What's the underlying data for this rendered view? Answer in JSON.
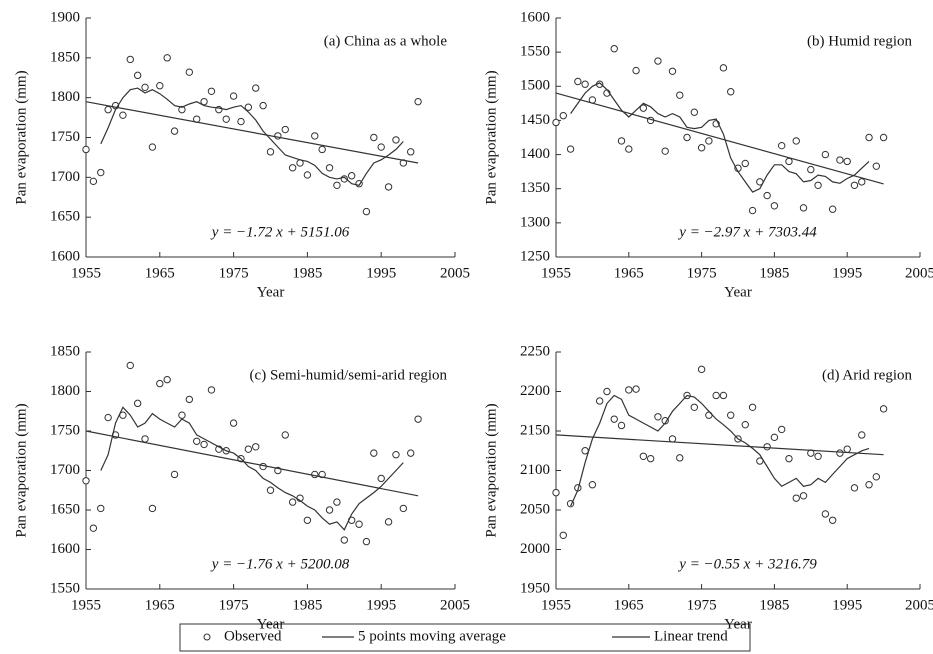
{
  "chart_data": [
    {
      "type": "line",
      "title": "(a) China as a whole",
      "annotation": "y = −1.72 x + 5151.06",
      "xlabel": "Year",
      "ylabel": "Pan evaporation (mm)",
      "xlim": [
        1955,
        2005
      ],
      "xticks": [
        1955,
        1965,
        1975,
        1985,
        1995,
        2005
      ],
      "ylim": [
        1600,
        1900
      ],
      "yticks": [
        1600,
        1650,
        1700,
        1750,
        1800,
        1850,
        1900
      ],
      "series": [
        {
          "name": "Observed",
          "type": "scatter",
          "color": "#333333",
          "x": [
            1955,
            1956,
            1957,
            1958,
            1959,
            1960,
            1961,
            1962,
            1963,
            1964,
            1965,
            1966,
            1967,
            1968,
            1969,
            1970,
            1971,
            1972,
            1973,
            1974,
            1975,
            1976,
            1977,
            1978,
            1979,
            1980,
            1981,
            1982,
            1983,
            1984,
            1985,
            1986,
            1987,
            1988,
            1989,
            1990,
            1991,
            1992,
            1993,
            1994,
            1995,
            1996,
            1997,
            1998,
            1999,
            2000
          ],
          "values": [
            1735,
            1695,
            1706,
            1785,
            1790,
            1778,
            1848,
            1828,
            1813,
            1738,
            1815,
            1850,
            1758,
            1785,
            1832,
            1773,
            1795,
            1808,
            1785,
            1773,
            1802,
            1770,
            1788,
            1812,
            1790,
            1732,
            1752,
            1760,
            1712,
            1718,
            1703,
            1752,
            1735,
            1712,
            1690,
            1698,
            1702,
            1692,
            1657,
            1750,
            1738,
            1688,
            1747,
            1718,
            1732,
            1795
          ]
        },
        {
          "name": "5 points moving average",
          "type": "line",
          "color": "#333333",
          "x": [
            1957,
            1958,
            1959,
            1960,
            1961,
            1962,
            1963,
            1964,
            1965,
            1966,
            1967,
            1968,
            1969,
            1970,
            1971,
            1972,
            1973,
            1974,
            1975,
            1976,
            1977,
            1978,
            1979,
            1980,
            1981,
            1982,
            1983,
            1984,
            1985,
            1986,
            1987,
            1988,
            1989,
            1990,
            1991,
            1992,
            1993,
            1994,
            1995,
            1996,
            1997,
            1998
          ],
          "values": [
            1742,
            1762,
            1785,
            1800,
            1810,
            1812,
            1806,
            1810,
            1805,
            1798,
            1790,
            1788,
            1792,
            1795,
            1790,
            1788,
            1787,
            1785,
            1788,
            1790,
            1782,
            1772,
            1758,
            1748,
            1738,
            1728,
            1725,
            1722,
            1720,
            1715,
            1705,
            1700,
            1698,
            1700,
            1692,
            1690,
            1705,
            1718,
            1722,
            1728,
            1735,
            1745
          ]
        },
        {
          "name": "Linear trend",
          "type": "line",
          "color": "#333333",
          "x": [
            1955,
            2000
          ],
          "values": [
            1795,
            1718
          ]
        }
      ]
    },
    {
      "type": "line",
      "title": "(b) Humid region",
      "annotation": "y = −2.97 x + 7303.44",
      "xlabel": "Year",
      "ylabel": "Pan evaporation (mm)",
      "xlim": [
        1955,
        2005
      ],
      "xticks": [
        1955,
        1965,
        1975,
        1985,
        1995,
        2005
      ],
      "ylim": [
        1250,
        1600
      ],
      "yticks": [
        1250,
        1300,
        1350,
        1400,
        1450,
        1500,
        1550,
        1600
      ],
      "series": [
        {
          "type": "scatter",
          "color": "#333333",
          "x": [
            1955,
            1956,
            1957,
            1958,
            1959,
            1960,
            1961,
            1962,
            1963,
            1964,
            1965,
            1966,
            1967,
            1968,
            1969,
            1970,
            1971,
            1972,
            1973,
            1974,
            1975,
            1976,
            1977,
            1978,
            1979,
            1980,
            1981,
            1982,
            1983,
            1984,
            1985,
            1986,
            1987,
            1988,
            1989,
            1990,
            1991,
            1992,
            1993,
            1994,
            1995,
            1996,
            1997,
            1998,
            1999,
            2000
          ],
          "values": [
            1447,
            1457,
            1408,
            1507,
            1503,
            1480,
            1503,
            1490,
            1555,
            1420,
            1408,
            1523,
            1468,
            1450,
            1537,
            1405,
            1522,
            1487,
            1425,
            1462,
            1410,
            1420,
            1445,
            1527,
            1492,
            1380,
            1387,
            1318,
            1360,
            1340,
            1325,
            1413,
            1390,
            1420,
            1322,
            1378,
            1355,
            1400,
            1320,
            1392,
            1390,
            1355,
            1360,
            1425,
            1383,
            1425
          ]
        },
        {
          "type": "line",
          "color": "#333333",
          "x": [
            1957,
            1958,
            1959,
            1960,
            1961,
            1962,
            1963,
            1964,
            1965,
            1966,
            1967,
            1968,
            1969,
            1970,
            1971,
            1972,
            1973,
            1974,
            1975,
            1976,
            1977,
            1978,
            1979,
            1980,
            1981,
            1982,
            1983,
            1984,
            1985,
            1986,
            1987,
            1988,
            1989,
            1990,
            1991,
            1992,
            1993,
            1994,
            1995,
            1996,
            1997,
            1998
          ],
          "values": [
            1460,
            1475,
            1490,
            1500,
            1505,
            1495,
            1480,
            1465,
            1455,
            1465,
            1475,
            1470,
            1460,
            1455,
            1460,
            1455,
            1440,
            1438,
            1440,
            1450,
            1452,
            1430,
            1395,
            1375,
            1360,
            1345,
            1350,
            1370,
            1385,
            1385,
            1375,
            1372,
            1360,
            1362,
            1370,
            1368,
            1360,
            1358,
            1365,
            1370,
            1380,
            1390
          ]
        },
        {
          "type": "line",
          "color": "#333333",
          "x": [
            1955,
            2000
          ],
          "values": [
            1490,
            1357
          ]
        }
      ]
    },
    {
      "type": "line",
      "title": "(c) Semi-humid/semi-arid region",
      "annotation": "y = −1.76 x + 5200.08",
      "xlabel": "Year",
      "ylabel": "Pan evaporation (mm)",
      "xlim": [
        1955,
        2005
      ],
      "xticks": [
        1955,
        1965,
        1975,
        1985,
        1995,
        2005
      ],
      "ylim": [
        1550,
        1850
      ],
      "yticks": [
        1550,
        1600,
        1650,
        1700,
        1750,
        1800,
        1850
      ],
      "series": [
        {
          "type": "scatter",
          "color": "#333333",
          "x": [
            1955,
            1956,
            1957,
            1958,
            1959,
            1960,
            1961,
            1962,
            1963,
            1964,
            1965,
            1966,
            1967,
            1968,
            1969,
            1970,
            1971,
            1972,
            1973,
            1974,
            1975,
            1976,
            1977,
            1978,
            1979,
            1980,
            1981,
            1982,
            1983,
            1984,
            1985,
            1986,
            1987,
            1988,
            1989,
            1990,
            1991,
            1992,
            1993,
            1994,
            1995,
            1996,
            1997,
            1998,
            1999,
            2000
          ],
          "values": [
            1687,
            1627,
            1652,
            1767,
            1745,
            1770,
            1833,
            1785,
            1740,
            1652,
            1810,
            1815,
            1695,
            1770,
            1790,
            1737,
            1733,
            1802,
            1727,
            1725,
            1760,
            1715,
            1727,
            1730,
            1705,
            1675,
            1700,
            1745,
            1660,
            1665,
            1637,
            1695,
            1695,
            1650,
            1660,
            1612,
            1637,
            1632,
            1610,
            1722,
            1690,
            1635,
            1720,
            1652,
            1722,
            1765
          ]
        },
        {
          "type": "line",
          "color": "#333333",
          "x": [
            1957,
            1958,
            1959,
            1960,
            1961,
            1962,
            1963,
            1964,
            1965,
            1966,
            1967,
            1968,
            1969,
            1970,
            1971,
            1972,
            1973,
            1974,
            1975,
            1976,
            1977,
            1978,
            1979,
            1980,
            1981,
            1982,
            1983,
            1984,
            1985,
            1986,
            1987,
            1988,
            1989,
            1990,
            1991,
            1992,
            1993,
            1994,
            1995,
            1996,
            1997,
            1998
          ],
          "values": [
            1700,
            1720,
            1760,
            1780,
            1770,
            1755,
            1760,
            1772,
            1765,
            1760,
            1755,
            1765,
            1760,
            1745,
            1740,
            1735,
            1730,
            1725,
            1722,
            1715,
            1705,
            1700,
            1690,
            1685,
            1678,
            1672,
            1668,
            1662,
            1655,
            1650,
            1640,
            1632,
            1635,
            1625,
            1645,
            1658,
            1665,
            1672,
            1680,
            1690,
            1700,
            1710
          ]
        },
        {
          "type": "line",
          "color": "#333333",
          "x": [
            1955,
            2000
          ],
          "values": [
            1750,
            1668
          ]
        }
      ]
    },
    {
      "type": "line",
      "title": "(d) Arid region",
      "annotation": "y = −0.55 x + 3216.79",
      "xlabel": "Year",
      "ylabel": "Pan evaporation (mm)",
      "xlim": [
        1955,
        2005
      ],
      "xticks": [
        1955,
        1965,
        1975,
        1985,
        1995,
        2005
      ],
      "ylim": [
        1950,
        2250
      ],
      "yticks": [
        1950,
        2000,
        2050,
        2100,
        2150,
        2200,
        2250
      ],
      "series": [
        {
          "type": "scatter",
          "color": "#333333",
          "x": [
            1955,
            1956,
            1957,
            1958,
            1959,
            1960,
            1961,
            1962,
            1963,
            1964,
            1965,
            1966,
            1967,
            1968,
            1969,
            1970,
            1971,
            1972,
            1973,
            1974,
            1975,
            1976,
            1977,
            1978,
            1979,
            1980,
            1981,
            1982,
            1983,
            1984,
            1985,
            1986,
            1987,
            1988,
            1989,
            1990,
            1991,
            1992,
            1993,
            1994,
            1995,
            1996,
            1997,
            1998,
            1999,
            2000
          ],
          "values": [
            2072,
            2018,
            2058,
            2078,
            2125,
            2082,
            2188,
            2200,
            2165,
            2157,
            2202,
            2203,
            2118,
            2115,
            2168,
            2163,
            2140,
            2116,
            2195,
            2180,
            2228,
            2170,
            2195,
            2195,
            2170,
            2140,
            2158,
            2180,
            2112,
            2130,
            2142,
            2152,
            2115,
            2065,
            2068,
            2122,
            2118,
            2045,
            2037,
            2122,
            2127,
            2078,
            2145,
            2082,
            2092,
            2178
          ]
        },
        {
          "type": "line",
          "color": "#333333",
          "x": [
            1957,
            1958,
            1959,
            1960,
            1961,
            1962,
            1963,
            1964,
            1965,
            1966,
            1967,
            1968,
            1969,
            1970,
            1971,
            1972,
            1973,
            1974,
            1975,
            1976,
            1977,
            1978,
            1979,
            1980,
            1981,
            1982,
            1983,
            1984,
            1985,
            1986,
            1987,
            1988,
            1989,
            1990,
            1991,
            1992,
            1993,
            1994,
            1995,
            1996,
            1997,
            1998
          ],
          "values": [
            2055,
            2075,
            2110,
            2140,
            2160,
            2185,
            2195,
            2190,
            2170,
            2165,
            2160,
            2155,
            2150,
            2160,
            2175,
            2185,
            2195,
            2193,
            2185,
            2175,
            2165,
            2158,
            2150,
            2140,
            2135,
            2128,
            2120,
            2105,
            2090,
            2080,
            2085,
            2090,
            2080,
            2082,
            2090,
            2085,
            2095,
            2105,
            2115,
            2120,
            2125,
            2128
          ]
        },
        {
          "type": "line",
          "color": "#333333",
          "x": [
            1955,
            2000
          ],
          "values": [
            2145,
            2120
          ]
        }
      ]
    }
  ]
}
